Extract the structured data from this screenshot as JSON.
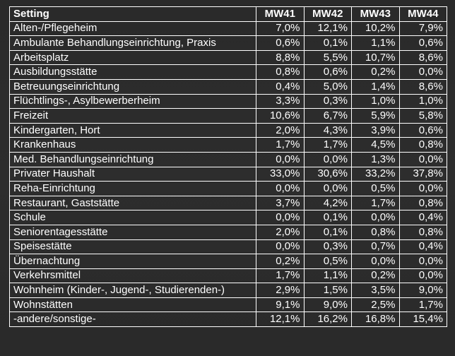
{
  "table": {
    "headers": [
      "Setting",
      "MW41",
      "MW42",
      "MW43",
      "MW44"
    ],
    "rows": [
      [
        "Alten-/Pflegeheim",
        "7,0%",
        "12,1%",
        "10,2%",
        "7,9%"
      ],
      [
        "Ambulante Behandlungseinrichtung, Praxis",
        "0,6%",
        "0,1%",
        "1,1%",
        "0,6%"
      ],
      [
        "Arbeitsplatz",
        "8,8%",
        "5,5%",
        "10,7%",
        "8,6%"
      ],
      [
        "Ausbildungsstätte",
        "0,8%",
        "0,6%",
        "0,2%",
        "0,0%"
      ],
      [
        "Betreuungseinrichtung",
        "0,4%",
        "5,0%",
        "1,4%",
        "8,6%"
      ],
      [
        "Flüchtlings-, Asylbewerberheim",
        "3,3%",
        "0,3%",
        "1,0%",
        "1,0%"
      ],
      [
        "Freizeit",
        "10,6%",
        "6,7%",
        "5,9%",
        "5,8%"
      ],
      [
        "Kindergarten, Hort",
        "2,0%",
        "4,3%",
        "3,9%",
        "0,6%"
      ],
      [
        "Krankenhaus",
        "1,7%",
        "1,7%",
        "4,5%",
        "0,8%"
      ],
      [
        "Med. Behandlungseinrichtung",
        "0,0%",
        "0,0%",
        "1,3%",
        "0,0%"
      ],
      [
        "Privater Haushalt",
        "33,0%",
        "30,6%",
        "33,2%",
        "37,8%"
      ],
      [
        "Reha-Einrichtung",
        "0,0%",
        "0,0%",
        "0,5%",
        "0,0%"
      ],
      [
        "Restaurant, Gaststätte",
        "3,7%",
        "4,2%",
        "1,7%",
        "0,8%"
      ],
      [
        "Schule",
        "0,0%",
        "0,1%",
        "0,0%",
        "0,4%"
      ],
      [
        "Seniorentagesstätte",
        "2,0%",
        "0,1%",
        "0,8%",
        "0,8%"
      ],
      [
        "Speisestätte",
        "0,0%",
        "0,3%",
        "0,7%",
        "0,4%"
      ],
      [
        "Übernachtung",
        "0,2%",
        "0,5%",
        "0,0%",
        "0,0%"
      ],
      [
        "Verkehrsmittel",
        "1,7%",
        "1,1%",
        "0,2%",
        "0,0%"
      ],
      [
        "Wohnheim (Kinder-, Jugend-, Studierenden-)",
        "2,9%",
        "1,5%",
        "3,5%",
        "9,0%"
      ],
      [
        "Wohnstätten",
        "9,1%",
        "9,0%",
        "2,5%",
        "1,7%"
      ],
      [
        "-andere/sonstige-",
        "12,1%",
        "16,2%",
        "16,8%",
        "15,4%"
      ]
    ]
  }
}
